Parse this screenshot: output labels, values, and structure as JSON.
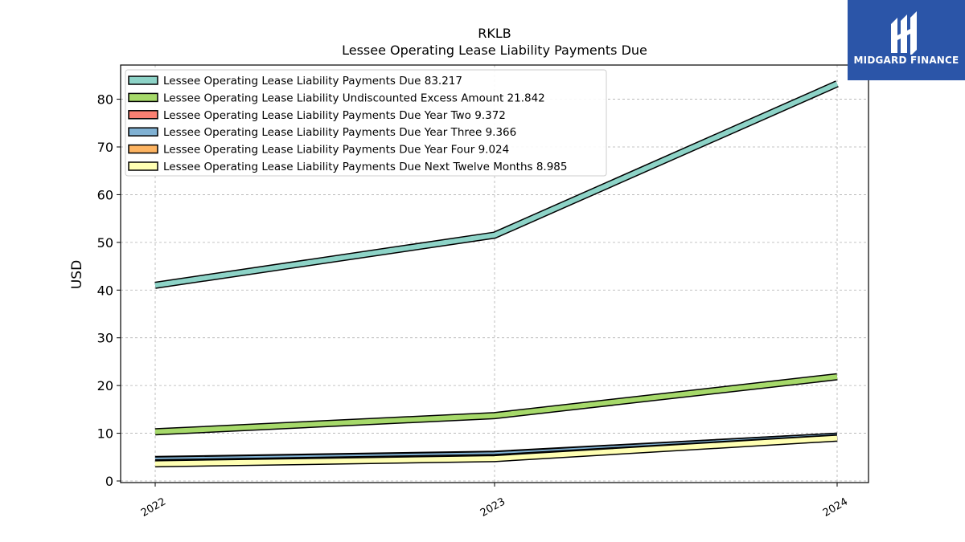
{
  "chart_data": {
    "type": "line",
    "title": "RKLB",
    "subtitle": "Lessee Operating Lease Liability Payments Due",
    "xlabel": "",
    "ylabel": "USD",
    "categories": [
      "2022",
      "2023",
      "2024"
    ],
    "ylim": [
      0,
      87
    ],
    "yticks": [
      0,
      10,
      20,
      30,
      40,
      50,
      60,
      70,
      80
    ],
    "grid": true,
    "legend_position": "top-left",
    "series": [
      {
        "name": "Lessee Operating Lease Liability Payments Due",
        "legend_label": "Lessee Operating Lease Liability Payments Due  83.217",
        "values": [
          41.0,
          51.5,
          83.217
        ],
        "color": "#8dd3c7"
      },
      {
        "name": "Lessee Operating Lease Liability Undiscounted Excess Amount",
        "legend_label": "Lessee Operating Lease Liability Undiscounted Excess Amount  21.842",
        "values": [
          10.3,
          13.7,
          21.842
        ],
        "color": "#a6d96a"
      },
      {
        "name": "Lessee Operating Lease Liability Payments Due Year Two",
        "legend_label": "Lessee Operating Lease Liability Payments Due Year Two  9.372",
        "values": [
          4.5,
          5.6,
          9.372
        ],
        "color": "#fb8072"
      },
      {
        "name": "Lessee Operating Lease Liability Payments Due Year Three",
        "legend_label": "Lessee Operating Lease Liability Payments Due Year Three  9.366",
        "values": [
          4.4,
          5.5,
          9.366
        ],
        "color": "#80b1d3"
      },
      {
        "name": "Lessee Operating Lease Liability Payments Due Year Four",
        "legend_label": "Lessee Operating Lease Liability Payments Due Year Four  9.024",
        "values": [
          3.8,
          4.9,
          9.024
        ],
        "color": "#fdb462"
      },
      {
        "name": "Lessee Operating Lease Liability Payments Due Next Twelve Months",
        "legend_label": "Lessee Operating Lease Liability Payments Due Next Twelve Months  8.985",
        "values": [
          3.6,
          4.7,
          8.985
        ],
        "color": "#ffffb3"
      }
    ]
  },
  "logo": {
    "text": "MIDGARD FINANCE",
    "color": "#2b55a8"
  }
}
